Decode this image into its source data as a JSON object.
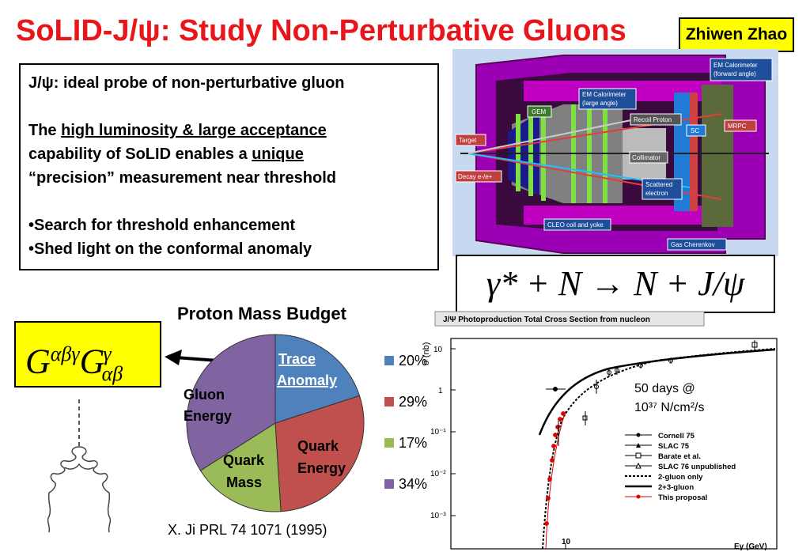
{
  "title": "SoLID-J/ψ: Study Non-Perturbative Gluons",
  "author": "Zhiwen Zhao",
  "textbox": {
    "line1": "J/ψ: ideal probe of non-perturbative gluon",
    "line2_pre": "The ",
    "line2_u": "high luminosity & large acceptance",
    "line3_pre": "capability of SoLID enables a ",
    "line3_u": "unique",
    "line4": "“precision” measurement near threshold",
    "bullet1": "•Search for threshold enhancement",
    "bullet2": "•Shed light on the conformal anomaly"
  },
  "detector": {
    "labels": {
      "em_forward": "EM Calorimeter (forward angle)",
      "em_forward_1": "EM Calorimeter",
      "em_forward_2": "(forward angle)",
      "em_large_1": "EM Calorimeter",
      "em_large_2": "(large angle)",
      "gem": "GEM",
      "recoil": "Recoil Proton",
      "sc": "SC",
      "mrpc": "MRPC",
      "target": "Target",
      "collimator": "Collimator",
      "decay": "Decay e-/e+",
      "scattered_1": "Scattered",
      "scattered_2": "electron",
      "cleo": "CLEO coil and yoke",
      "cherenkov": "Gas Cherenkov"
    }
  },
  "reaction": "γ* + N → N + J/ψ",
  "operator": "G^{αβγ} G^{γ}_{αβ}",
  "pie": {
    "title": "Proton Mass Budget",
    "labels": {
      "trace_1": "Trace",
      "trace_2": "Anomaly",
      "gluon_1": "Gluon",
      "gluon_2": "Energy",
      "quark_e_1": "Quark",
      "quark_e_2": "Energy",
      "quark_m_1": "Quark",
      "quark_m_2": "Mass"
    },
    "legend": [
      "20%",
      "29%",
      "17%",
      "34%"
    ]
  },
  "citation": "X. Ji  PRL 74 1071 (1995)",
  "chart_data": {
    "type": "pie",
    "title": "Proton Mass Budget",
    "categories": [
      "Trace Anomaly",
      "Quark Energy",
      "Quark Mass",
      "Gluon Energy"
    ],
    "values": [
      20,
      29,
      17,
      34
    ],
    "colors": [
      "#4f81bd",
      "#c0504d",
      "#9bbb59",
      "#8064a2"
    ]
  },
  "plot": {
    "header": "J/Ψ Photoproduction Total Cross Section from nucleon",
    "ylabel": "σ (nb)",
    "xlabel": "Eγ (GeV)",
    "yticks": [
      "10",
      "1",
      "10⁻¹",
      "10⁻²",
      "10⁻³"
    ],
    "xtick": "10",
    "annotation_1": "50 days @",
    "annotation_2": "10³⁷ N/cm²/s",
    "legend": [
      "Cornell 75",
      "SLAC 75",
      "Barate et al.",
      "SLAC 76 unpublished",
      "2-gluon only",
      "2+3-gluon",
      "This proposal"
    ]
  },
  "colors": {
    "title": "#e8161a",
    "highlight": "#ffff00",
    "detector_bg": "#c6d9f1",
    "magenta": "#c000c0"
  }
}
